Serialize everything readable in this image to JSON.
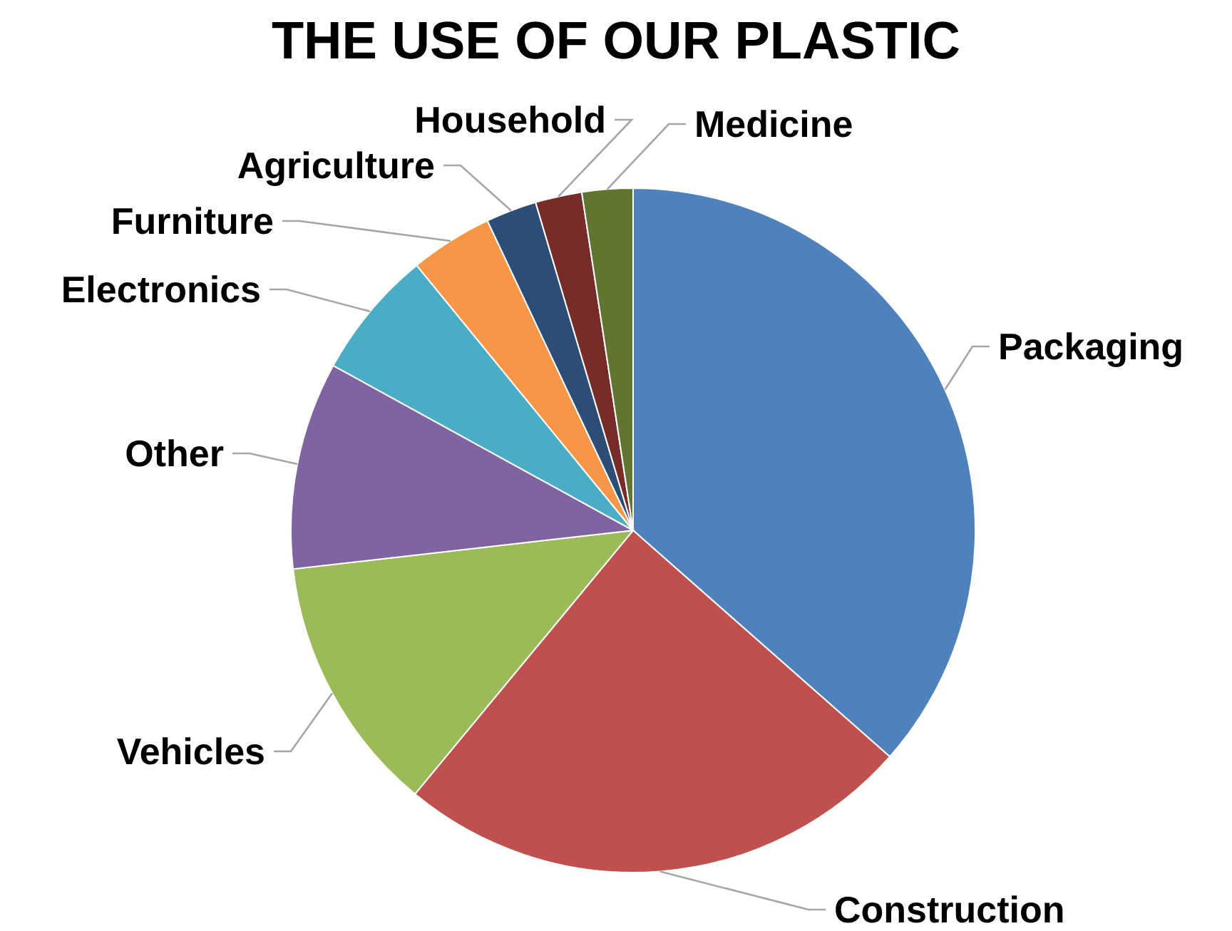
{
  "chart_data": {
    "type": "pie",
    "title": "THE USE OF OUR PLASTIC",
    "categories": [
      "Packaging",
      "Construction",
      "Vehicles",
      "Other",
      "Electronics",
      "Furniture",
      "Agriculture",
      "Household",
      "Medicine"
    ],
    "values": [
      36.5,
      24.5,
      12.2,
      9.8,
      6.1,
      3.9,
      2.4,
      2.2,
      2.4
    ],
    "colors": [
      "#4f81bd",
      "#c0504d",
      "#9bbb59",
      "#8064a2",
      "#4bacc6",
      "#f79646",
      "#2c4d75",
      "#772c2a",
      "#5f7530"
    ]
  }
}
